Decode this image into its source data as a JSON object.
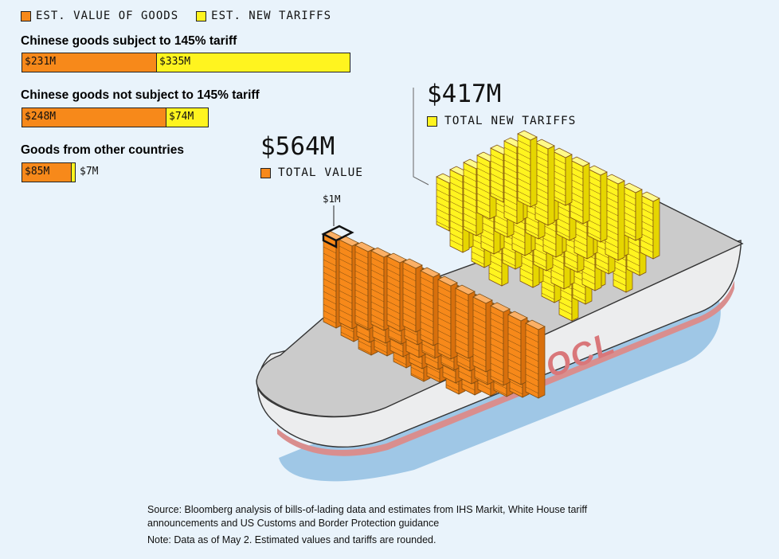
{
  "legend": {
    "value_label": "EST. VALUE OF GOODS",
    "tariff_label": "EST. NEW TARIFFS",
    "value_color": "#f7891a",
    "tariff_color": "#fff41f"
  },
  "chart_data": {
    "type": "bar",
    "orientation": "horizontal",
    "stacked": true,
    "units": "$M",
    "categories": [
      "Chinese goods subject to 145% tariff",
      "Chinese goods not subject to 145% tariff",
      "Goods from other countries"
    ],
    "series": [
      {
        "name": "EST. VALUE OF GOODS",
        "values": [
          231,
          248,
          85
        ],
        "labels": [
          "$231M",
          "$248M",
          "$85M"
        ],
        "color": "#f7891a"
      },
      {
        "name": "EST. NEW TARIFFS",
        "values": [
          335,
          74,
          7
        ],
        "labels": [
          "$335M",
          "$74M",
          "$7M"
        ],
        "color": "#fff41f"
      }
    ]
  },
  "totals": {
    "tariffs_value": "$417M",
    "tariffs_label": "TOTAL NEW TARIFFS",
    "value_value": "$564M",
    "value_label": "TOTAL VALUE",
    "unit_label": "$1M"
  },
  "ship": {
    "brand": "OOCL",
    "hull_color": "#ecedee",
    "deck_color": "#cbcbcb",
    "water_color": "#9fc7e6",
    "waterline_color": "#d98e8e"
  },
  "footer": {
    "source": "Source: Bloomberg analysis of bills-of-lading data and estimates from IHS Markit, White House tariff announcements and US Customs and Border Protection guidance",
    "note": "Note: Data as of May 2. Estimated values and tariffs are rounded."
  }
}
